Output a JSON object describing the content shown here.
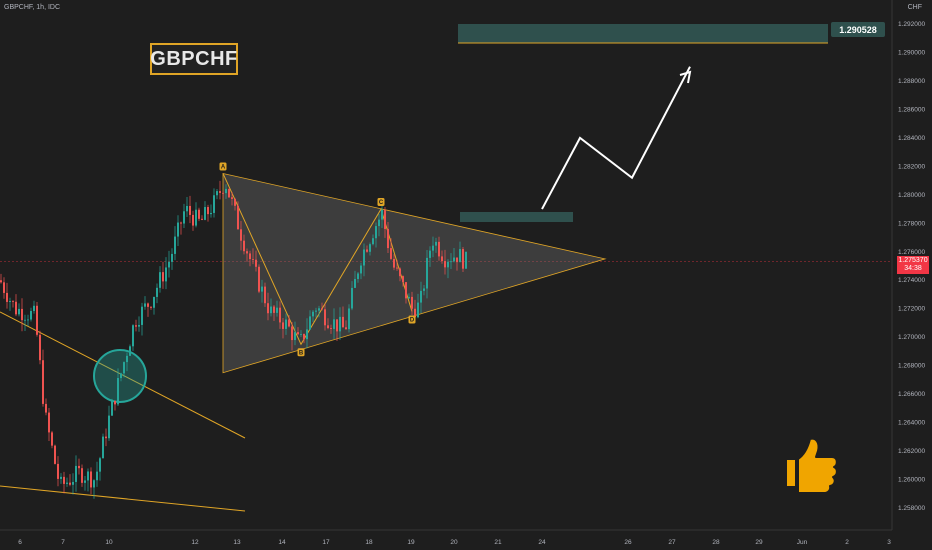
{
  "header": {
    "symbol": "GBPCHF, 1h, IDC",
    "currency": "CHF"
  },
  "logo_text": "GBPCHF",
  "target_label": "1.290528",
  "last_price": {
    "value": "1.275370",
    "countdown": "34:38"
  },
  "colors": {
    "background": "#1e1e1e",
    "up": "#26a69a",
    "down": "#ef5350",
    "orange": "#e0a526",
    "target_zone": "#2f504d"
  },
  "icon": "thumbs-up-icon",
  "chart_data": {
    "type": "candlestick",
    "ylim": [
      1.257,
      1.293
    ],
    "y_ticks": [
      "1.292000",
      "1.290000",
      "1.288000",
      "1.286000",
      "1.284000",
      "1.282000",
      "1.280000",
      "1.278000",
      "1.276000",
      "1.274000",
      "1.272000",
      "1.270000",
      "1.268000",
      "1.266000",
      "1.264000",
      "1.262000",
      "1.260000",
      "1.258000"
    ],
    "x_ticks": [
      "6",
      "7",
      "10",
      "12",
      "13",
      "14",
      "17",
      "18",
      "19",
      "20",
      "21",
      "24",
      "26",
      "27",
      "28",
      "29",
      "Jun",
      "2",
      "3"
    ],
    "pattern_points": [
      {
        "label": "A",
        "value": 1.2815
      },
      {
        "label": "B",
        "value": 1.2695
      },
      {
        "label": "C",
        "value": 1.279
      },
      {
        "label": "D",
        "value": 1.2718
      }
    ],
    "triangle": {
      "upper_start": 1.2815,
      "lower_start": 1.2675,
      "apex": 1.2755
    },
    "target_price": 1.290528,
    "projection_path": [
      1.279,
      1.284,
      1.2812,
      1.289
    ]
  }
}
